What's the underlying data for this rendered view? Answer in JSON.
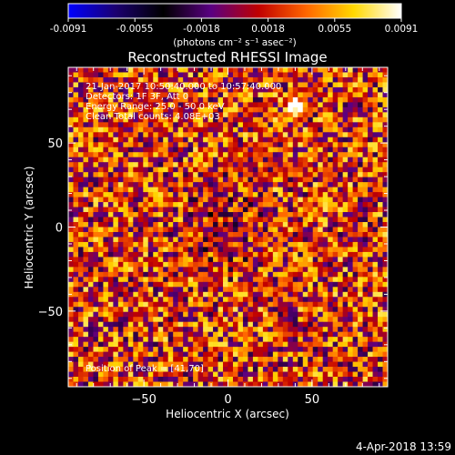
{
  "colorbar": {
    "ticks": [
      "-0.0091",
      "-0.0055",
      "-0.0018",
      "0.0018",
      "0.0055",
      "0.0091"
    ],
    "unit_label": "(photons cm⁻² s⁻¹ asec⁻²)",
    "stops": [
      "#0000ff",
      "#1b0070",
      "#000000",
      "#5a0082",
      "#c00000",
      "#ff6600",
      "#ffd800",
      "#ffffff"
    ]
  },
  "chart_data": {
    "type": "heatmap",
    "title": "Reconstructed RHESSI Image",
    "xlabel": "Heliocentric X (arcsec)",
    "ylabel": "Heliocentric Y (arcsec)",
    "xlim": [
      -95,
      95
    ],
    "ylim": [
      -95,
      95
    ],
    "xticks": [
      -50,
      0,
      50
    ],
    "yticks": [
      -50,
      0,
      50
    ],
    "value_range": [
      -0.0091,
      0.0091
    ],
    "peak_position": [
      41,
      70
    ],
    "annotations": [
      "21-Jan-2017 10:50:40.000 to 10:57:40.000",
      "Detectors: 1F 3F, Att 0",
      "Energy Range: 25.0 - 50.0 keV",
      "Clean    Total counts: 4.08E+03",
      "Position of Peak = [41,70]"
    ]
  },
  "footer": {
    "timestamp": "4-Apr-2018 13:59"
  }
}
